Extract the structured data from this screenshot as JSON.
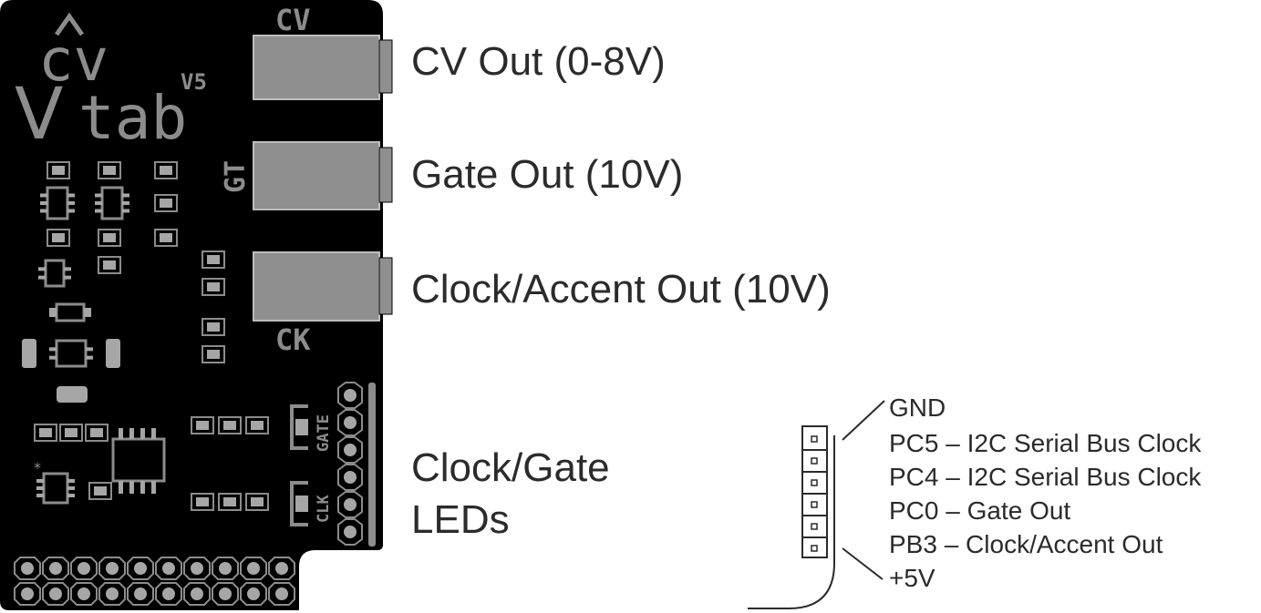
{
  "board": {
    "logo_top": "cv",
    "logo_v": "V",
    "logo_bottom": "tab",
    "version": "V5",
    "silk_cv": "CV",
    "silk_gt": "GT",
    "silk_ck": "CK",
    "silk_gate": "GATE",
    "silk_clk": "CLK",
    "silk_star": "*"
  },
  "callouts": {
    "cv_out": "CV Out (0-8V)",
    "gate_out": "Gate Out (10V)",
    "clock_out": "Clock/Accent Out (10V)",
    "leds_line1": "Clock/Gate",
    "leds_line2": "LEDs"
  },
  "pinout": {
    "pins": [
      "GND",
      "PC5 – I2C Serial Bus Clock",
      "PC4 – I2C Serial Bus Clock",
      "PC0 – Gate Out",
      "PB3 – Clock/Accent Out",
      "+5V"
    ]
  },
  "colors": {
    "board": "#000000",
    "silk": "#8c8c8c",
    "pad": "#a6a6a6",
    "jack": "#8f8f8f",
    "text": "#2b2b2b"
  }
}
